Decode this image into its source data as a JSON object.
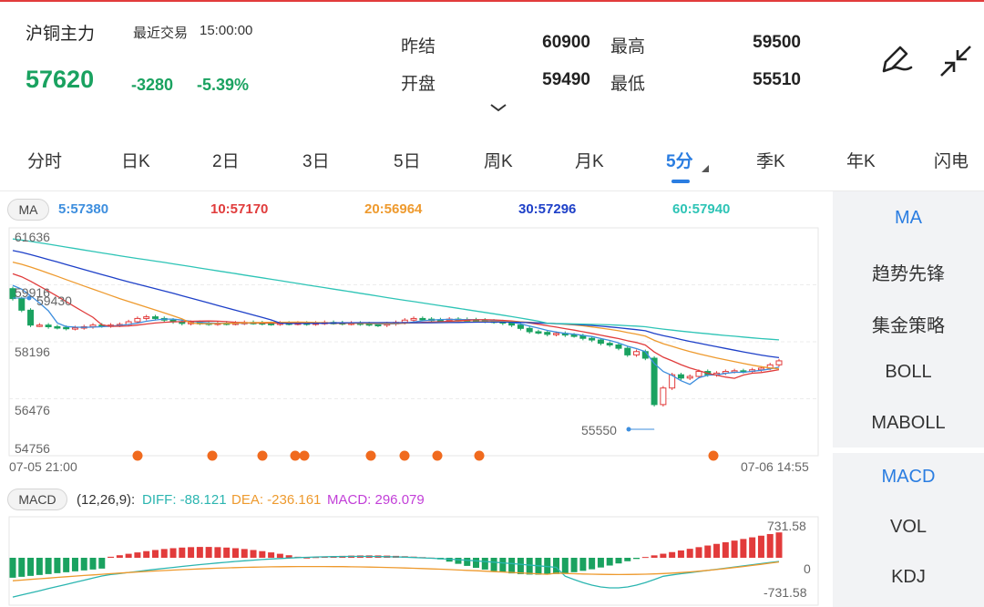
{
  "header": {
    "contract": "沪铜主力",
    "last_trade_label": "最近交易",
    "last_trade_time": "15:00:00",
    "price": "57620",
    "change": "-3280",
    "change_pct": "-5.39%"
  },
  "quotes": [
    {
      "label": "昨结",
      "value": "60900"
    },
    {
      "label": "最高",
      "value": "59500"
    },
    {
      "label": "开盘",
      "value": "59490"
    },
    {
      "label": "最低",
      "value": "55510"
    }
  ],
  "icons": {
    "draw": "pen-icon",
    "collapse": "collapse-arrows-icon",
    "expand": "chevron-down-icon"
  },
  "tabs": [
    "分时",
    "日K",
    "2日",
    "3日",
    "5日",
    "周K",
    "月K",
    "5分",
    "季K",
    "年K",
    "闪电"
  ],
  "active_tab": "5分",
  "ma_bar": {
    "label": "MA",
    "items": [
      {
        "text": "5:57380",
        "color": "#3d8ede"
      },
      {
        "text": "10:57170",
        "color": "#e03c3c"
      },
      {
        "text": "20:56964",
        "color": "#ee9a2e"
      },
      {
        "text": "30:57296",
        "color": "#1e40c8"
      },
      {
        "text": "60:57940",
        "color": "#2ec4b6"
      }
    ]
  },
  "side_menu": {
    "main": [
      "MA",
      "趋势先锋",
      "集金策略",
      "BOLL",
      "MABOLL"
    ],
    "sub": [
      "MACD",
      "VOL",
      "KDJ"
    ],
    "active_main": "MA",
    "active_sub": "MACD"
  },
  "macd_bar": {
    "label": "MACD",
    "params": "(12,26,9):",
    "diff": "DIFF: -88.121",
    "dea": "DEA: -236.161",
    "macd": "MACD: 296.079",
    "diff_color": "#2bb5b0",
    "dea_color": "#ee9a2e",
    "macd_color": "#c23fd8"
  },
  "colors": {
    "up": "#e23b3b",
    "down": "#1aa260",
    "accent": "#2a7de1",
    "signal_dot": "#f06a1e"
  },
  "chart_data": {
    "type": "candlestick",
    "y_ticks": [
      "61636",
      "58196",
      "56476",
      "54756"
    ],
    "ylim": [
      54756,
      61636
    ],
    "x_start_label": "07-05 21:00",
    "x_end_label": "07-06 14:55",
    "annotations": [
      {
        "text": "59916",
        "value": 59916
      },
      {
        "text": "59430",
        "value": 59430
      },
      {
        "text": "55550",
        "value": 55550
      }
    ],
    "close": [
      59500,
      59150,
      58700,
      58700,
      58650,
      58630,
      58600,
      58620,
      58650,
      58700,
      58680,
      58700,
      58720,
      58800,
      58900,
      58950,
      58900,
      58850,
      58800,
      58750,
      58780,
      58760,
      58740,
      58760,
      58750,
      58760,
      58780,
      58770,
      58750,
      58740,
      58760,
      58750,
      58760,
      58740,
      58760,
      58780,
      58770,
      58750,
      58760,
      58740,
      58720,
      58700,
      58740,
      58780,
      58850,
      58900,
      58880,
      58860,
      58850,
      58880,
      58870,
      58860,
      58850,
      58820,
      58800,
      58760,
      58700,
      58600,
      58500,
      58480,
      58420,
      58450,
      58400,
      58380,
      58300,
      58250,
      58150,
      58100,
      58000,
      57800,
      57900,
      57700,
      56300,
      56800,
      57200,
      57100,
      57150,
      57300,
      57200,
      57250,
      57300,
      57320,
      57300,
      57350,
      57400,
      57500,
      57620
    ],
    "macd_ylim": [
      -731.58,
      731.58
    ],
    "macd_ticks": [
      "731.58",
      "0",
      "-731.58"
    ]
  }
}
